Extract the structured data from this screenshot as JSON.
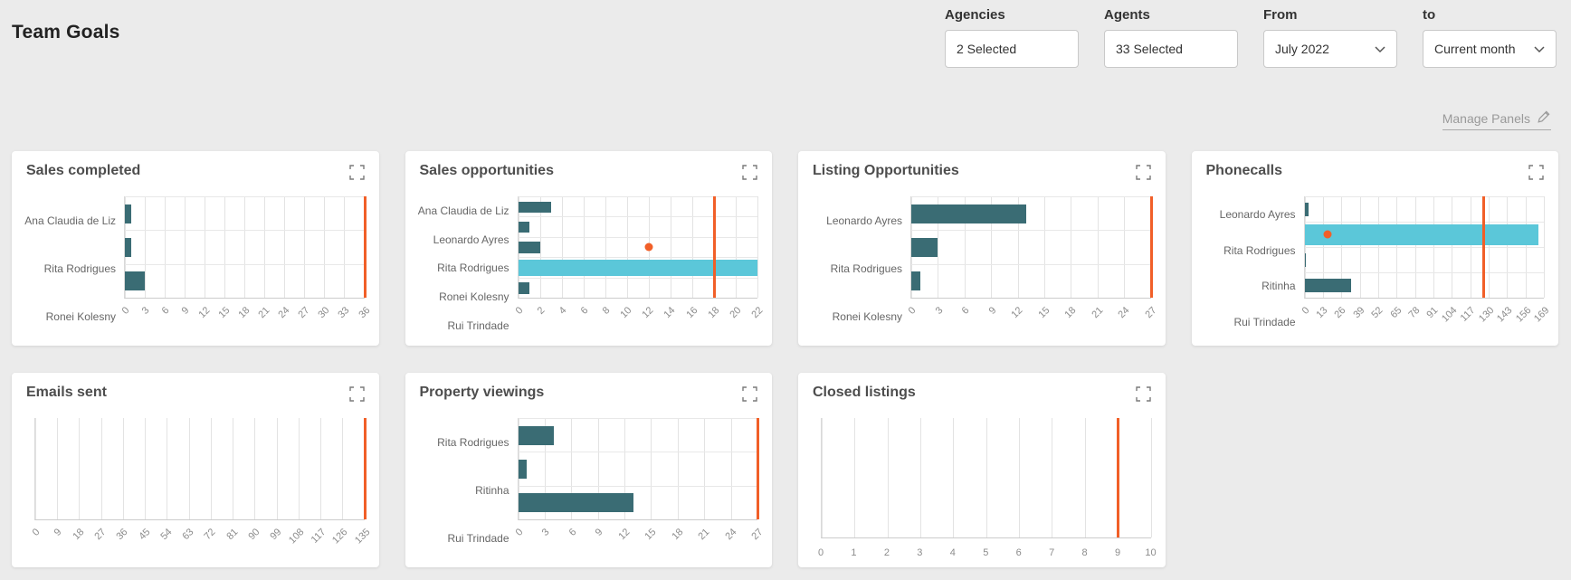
{
  "page": {
    "title": "Team Goals",
    "manage_panels_label": "Manage Panels"
  },
  "filters": [
    {
      "id": "agencies",
      "label": "Agencies",
      "value": "2 Selected",
      "chevron": false
    },
    {
      "id": "agents",
      "label": "Agents",
      "value": "33 Selected",
      "chevron": false
    },
    {
      "id": "from",
      "label": "From",
      "value": "July 2022",
      "chevron": true
    },
    {
      "id": "to",
      "label": "to",
      "value": "Current month",
      "chevron": true
    }
  ],
  "colors": {
    "background": "#ebebeb",
    "panel": "#ffffff",
    "bar": "#3a6c74",
    "highlight_bar": "#5bc7d9",
    "target": "#f15f28",
    "grid": "#e3e3e3",
    "axis": "#cccccc",
    "title_text": "#4d4d4d",
    "category_text": "#666666",
    "tick_text": "#8c8c8c"
  },
  "chart_data": [
    {
      "id": "sales-completed",
      "title": "Sales completed",
      "type": "bar",
      "orientation": "horizontal",
      "categories": [
        "Ana Claudia de Liz",
        "Rita Rodrigues",
        "Ronei Kolesny"
      ],
      "values": [
        1,
        1,
        3
      ],
      "highlight_index": -1,
      "target_line": 36,
      "dot": null,
      "xlim": [
        0,
        36
      ],
      "ticks": [
        0,
        3,
        6,
        9,
        12,
        15,
        18,
        21,
        24,
        27,
        30,
        33,
        36
      ],
      "tick_rotation": 45
    },
    {
      "id": "sales-opportunities",
      "title": "Sales opportunities",
      "type": "bar",
      "orientation": "horizontal",
      "categories": [
        "Ana Claudia de Liz",
        "Leonardo Ayres",
        "Rita Rodrigues",
        "Ronei Kolesny",
        "Rui Trindade"
      ],
      "values": [
        3,
        1,
        2,
        22,
        1
      ],
      "highlight_index": 3,
      "target_line": 18,
      "dot": {
        "category_index": 2,
        "value": 12
      },
      "xlim": [
        0,
        22
      ],
      "ticks": [
        0,
        2,
        4,
        6,
        8,
        10,
        12,
        14,
        16,
        18,
        20,
        22
      ],
      "tick_rotation": 45
    },
    {
      "id": "listing-opportunities",
      "title": "Listing Opportunities",
      "type": "bar",
      "orientation": "horizontal",
      "categories": [
        "Leonardo Ayres",
        "Rita Rodrigues",
        "Ronei Kolesny"
      ],
      "values": [
        13,
        3,
        1
      ],
      "highlight_index": -1,
      "target_line": 27,
      "dot": null,
      "xlim": [
        0,
        27
      ],
      "ticks": [
        0,
        3,
        6,
        9,
        12,
        15,
        18,
        21,
        24,
        27
      ],
      "tick_rotation": 45
    },
    {
      "id": "phonecalls",
      "title": "Phonecalls",
      "type": "bar",
      "orientation": "horizontal",
      "categories": [
        "Leonardo Ayres",
        "Rita Rodrigues",
        "Ritinha",
        "Rui Trindade"
      ],
      "values": [
        3,
        165,
        0.5,
        33
      ],
      "highlight_index": 1,
      "target_line": 126,
      "dot": {
        "category_index": 1,
        "value": 16
      },
      "xlim": [
        0,
        169
      ],
      "ticks": [
        0,
        13,
        26,
        39,
        52,
        65,
        78,
        91,
        104,
        117,
        130,
        143,
        156,
        169
      ],
      "tick_rotation": 45
    },
    {
      "id": "emails-sent",
      "title": "Emails sent",
      "type": "bar",
      "orientation": "horizontal",
      "categories": [],
      "values": [],
      "highlight_index": -1,
      "target_line": 135,
      "dot": null,
      "xlim": [
        0,
        135
      ],
      "ticks": [
        0,
        9,
        18,
        27,
        36,
        45,
        54,
        63,
        72,
        81,
        90,
        99,
        108,
        117,
        126,
        135
      ],
      "tick_rotation": 45
    },
    {
      "id": "property-viewings",
      "title": "Property viewings",
      "type": "bar",
      "orientation": "horizontal",
      "categories": [
        "Rita Rodrigues",
        "Ritinha",
        "Rui Trindade"
      ],
      "values": [
        4,
        1,
        13
      ],
      "highlight_index": -1,
      "target_line": 27,
      "dot": null,
      "xlim": [
        0,
        27
      ],
      "ticks": [
        0,
        3,
        6,
        9,
        12,
        15,
        18,
        21,
        24,
        27
      ],
      "tick_rotation": 45
    },
    {
      "id": "closed-listings",
      "title": "Closed listings",
      "type": "bar",
      "orientation": "horizontal",
      "categories": [],
      "values": [],
      "highlight_index": -1,
      "target_line": 9,
      "dot": null,
      "xlim": [
        0,
        10
      ],
      "ticks": [
        0,
        1,
        2,
        3,
        4,
        5,
        6,
        7,
        8,
        9,
        10
      ],
      "tick_rotation": 0
    }
  ]
}
